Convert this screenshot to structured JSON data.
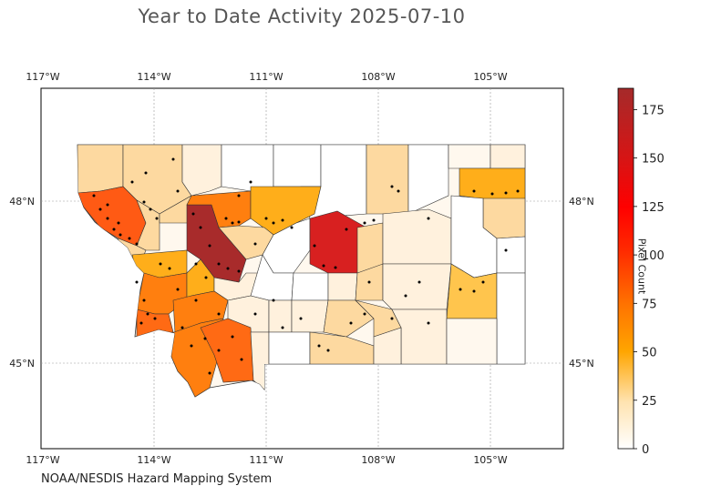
{
  "title": "Year to Date Activity 2025-07-10",
  "footer": "NOAA/NESDIS Hazard Mapping System",
  "lon_labels": [
    "117°W",
    "114°W",
    "111°W",
    "108°W",
    "105°W"
  ],
  "lat_labels": [
    "48°N",
    "45°N"
  ],
  "colorbar": {
    "label": "Pixel Count",
    "ticks": [
      "0",
      "25",
      "50",
      "75",
      "100",
      "125",
      "150",
      "175"
    ],
    "range": [
      0,
      186
    ],
    "colors": [
      "#ffffff",
      "#ffe3b0",
      "#ffa500",
      "#ff7300",
      "#ff2a00",
      "#ff0000",
      "#d81414",
      "#a52a2a"
    ]
  },
  "map": {
    "region": "Montana counties",
    "lon_range": [
      -117,
      -103
    ],
    "lat_range": [
      44,
      49.8
    ]
  }
}
